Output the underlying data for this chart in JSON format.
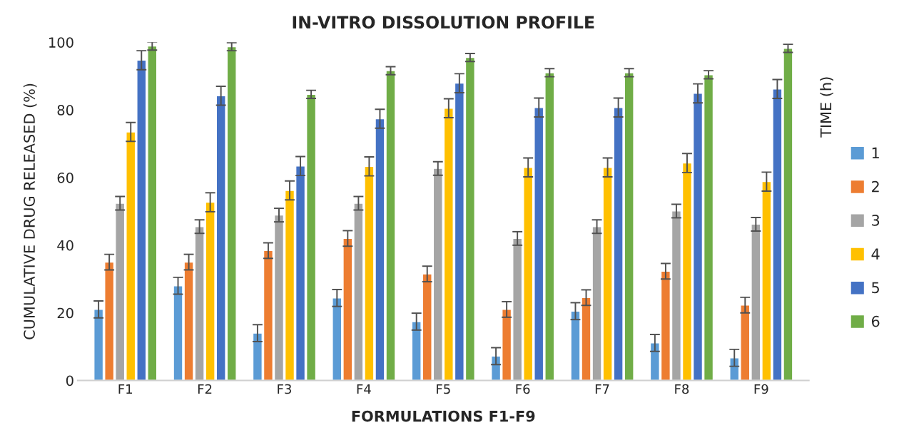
{
  "chart_data": {
    "type": "bar",
    "title": "IN-VITRO DISSOLUTION PROFILE",
    "xlabel": "FORMULATIONS F1-F9",
    "ylabel": "CUMULATIVE DRUG RELEASED (%)",
    "legend_title": "TIME (h)",
    "categories": [
      "F1",
      "F2",
      "F3",
      "F4",
      "F5",
      "F6",
      "F7",
      "F8",
      "F9"
    ],
    "series": [
      {
        "name": "1",
        "color": "#5b9bd5",
        "values": [
          21,
          28,
          14,
          24.4,
          17.4,
          7.2,
          20.5,
          11.1,
          6.7
        ],
        "errors": [
          2.5,
          2.5,
          2.5,
          2.5,
          2.5,
          2.5,
          2.5,
          2.5,
          2.5
        ]
      },
      {
        "name": "2",
        "color": "#ed7d31",
        "values": [
          35,
          35,
          38.4,
          42,
          31.5,
          21,
          24.5,
          32.3,
          22.3
        ],
        "errors": [
          2.3,
          2.3,
          2.3,
          2.3,
          2.3,
          2.3,
          2.3,
          2.3,
          2.3
        ]
      },
      {
        "name": "3",
        "color": "#a5a5a5",
        "values": [
          52.4,
          45.5,
          48.9,
          52.4,
          62.7,
          42,
          45.5,
          50.1,
          46.2
        ],
        "errors": [
          2,
          2,
          2,
          2,
          2,
          2,
          2,
          2,
          2
        ]
      },
      {
        "name": "4",
        "color": "#ffc000",
        "values": [
          73.5,
          52.7,
          56.2,
          63.3,
          80.5,
          63,
          63,
          64.3,
          58.8
        ],
        "errors": [
          2.8,
          2.8,
          2.8,
          2.8,
          2.8,
          2.8,
          2.8,
          2.8,
          2.8
        ]
      },
      {
        "name": "5",
        "color": "#4472c4",
        "values": [
          94.7,
          84.2,
          63.4,
          77.4,
          87.9,
          80.7,
          80.7,
          84.9,
          86.2
        ],
        "errors": [
          2.8,
          2.8,
          2.8,
          2.8,
          2.8,
          2.8,
          2.8,
          2.8,
          2.8
        ]
      },
      {
        "name": "6",
        "color": "#70ad47",
        "values": [
          98.9,
          98.7,
          84.6,
          91.6,
          95.5,
          91,
          91,
          90.4,
          98.2
        ],
        "errors": [
          1.2,
          1.2,
          1.2,
          1.2,
          1.2,
          1.2,
          1.2,
          1.2,
          1.2
        ]
      }
    ],
    "ylim": [
      0,
      100
    ],
    "yticks": [
      0,
      20,
      40,
      60,
      80,
      100
    ],
    "grid": false,
    "legend": "right"
  }
}
